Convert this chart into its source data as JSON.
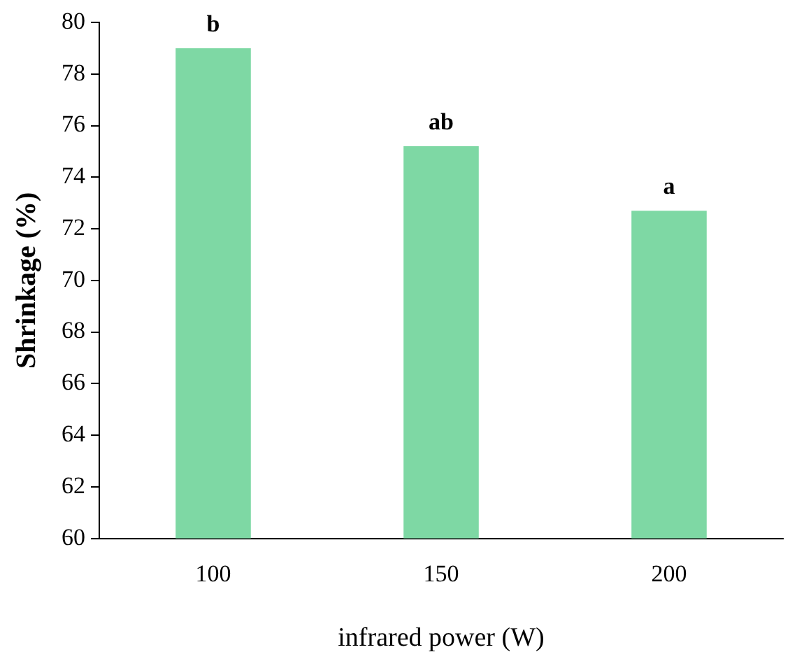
{
  "chart_data": {
    "type": "bar",
    "categories": [
      "100",
      "150",
      "200"
    ],
    "values": [
      79,
      75.2,
      72.7
    ],
    "color": "#7ed8a4",
    "xlabel": "infrared power (W)",
    "ylabel": "Shrinkage (%)",
    "ylim": [
      60,
      80
    ],
    "yticks": [
      60,
      62,
      64,
      66,
      68,
      70,
      72,
      74,
      76,
      78,
      80
    ],
    "grid": false,
    "legend": false,
    "annotations": [
      {
        "text": "b",
        "x": "100",
        "y": 79
      },
      {
        "text": "ab",
        "x": "150",
        "y": 75.2
      },
      {
        "text": "a",
        "x": "200",
        "y": 72.7
      }
    ]
  }
}
